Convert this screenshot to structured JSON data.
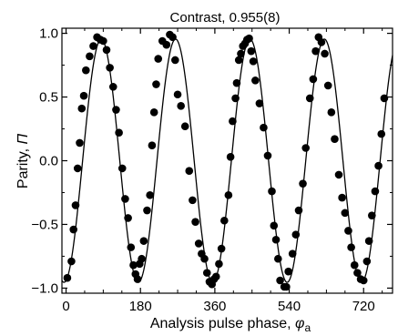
{
  "chart_data": {
    "type": "scatter",
    "title": "Contrast, 0.955(8)",
    "xlabel": "Analysis pulse phase, ",
    "xlabel_symbol": "φ",
    "xlabel_subscript": "a",
    "ylabel": "Parity, ",
    "ylabel_symbol": "Π",
    "xlim": [
      -10,
      790
    ],
    "ylim": [
      -1.04,
      1.04
    ],
    "xticks": [
      0,
      180,
      360,
      540,
      720
    ],
    "xtick_labels": [
      "0",
      "180",
      "360",
      "540",
      "720"
    ],
    "yticks": [
      -1.0,
      -0.5,
      0.0,
      0.5,
      1.0
    ],
    "ytick_labels": [
      "−1.0",
      "−0.5",
      "0.0",
      "0.5",
      "1.0"
    ],
    "grid": false,
    "fit": {
      "type": "cosine",
      "amplitude": 0.955,
      "period_deg": 180,
      "peak_phase_deg": 85
    },
    "series": [
      {
        "marker": "filled-circle",
        "color": "#000000",
        "points": [
          [
            3,
            -0.92
          ],
          [
            13,
            -0.79
          ],
          [
            18,
            -0.54
          ],
          [
            23,
            -0.35
          ],
          [
            28,
            -0.06
          ],
          [
            33,
            0.14
          ],
          [
            38,
            0.41
          ],
          [
            43,
            0.51
          ],
          [
            48,
            0.71
          ],
          [
            57,
            0.82
          ],
          [
            66,
            0.9
          ],
          [
            75,
            0.97
          ],
          [
            83,
            0.95
          ],
          [
            90,
            0.94
          ],
          [
            98,
            0.87
          ],
          [
            106,
            0.73
          ],
          [
            114,
            0.58
          ],
          [
            121,
            0.4
          ],
          [
            128,
            0.22
          ],
          [
            136,
            -0.06
          ],
          [
            143,
            -0.3
          ],
          [
            150,
            -0.45
          ],
          [
            157,
            -0.68
          ],
          [
            163,
            -0.82
          ],
          [
            168,
            -0.89
          ],
          [
            173,
            -0.93
          ],
          [
            178,
            -0.81
          ],
          [
            183,
            -0.77
          ],
          [
            188,
            -0.63
          ],
          [
            196,
            -0.39
          ],
          [
            203,
            -0.27
          ],
          [
            208,
            0.12
          ],
          [
            213,
            0.38
          ],
          [
            218,
            0.6
          ],
          [
            223,
            0.8
          ],
          [
            233,
            0.94
          ],
          [
            243,
            0.91
          ],
          [
            251,
            0.99
          ],
          [
            258,
            0.97
          ],
          [
            264,
            0.79
          ],
          [
            270,
            0.52
          ],
          [
            278,
            0.43
          ],
          [
            288,
            0.27
          ],
          [
            298,
            -0.08
          ],
          [
            306,
            -0.31
          ],
          [
            313,
            -0.48
          ],
          [
            321,
            -0.65
          ],
          [
            328,
            -0.73
          ],
          [
            335,
            -0.77
          ],
          [
            341,
            -0.88
          ],
          [
            347,
            -0.95
          ],
          [
            353,
            -0.97
          ],
          [
            358,
            -0.93
          ],
          [
            363,
            -0.91
          ],
          [
            370,
            -0.81
          ],
          [
            376,
            -0.69
          ],
          [
            383,
            -0.47
          ],
          [
            393,
            -0.27
          ],
          [
            398,
            0.03
          ],
          [
            403,
            0.31
          ],
          [
            410,
            0.49
          ],
          [
            413,
            0.61
          ],
          [
            418,
            0.79
          ],
          [
            423,
            0.84
          ],
          [
            428,
            0.9
          ],
          [
            433,
            0.92
          ],
          [
            438,
            0.95
          ],
          [
            443,
            0.96
          ],
          [
            448,
            0.86
          ],
          [
            453,
            0.78
          ],
          [
            458,
            0.63
          ],
          [
            468,
            0.45
          ],
          [
            478,
            0.26
          ],
          [
            488,
            0.04
          ],
          [
            498,
            -0.24
          ],
          [
            503,
            -0.51
          ],
          [
            508,
            -0.62
          ],
          [
            513,
            -0.77
          ],
          [
            518,
            -0.94
          ],
          [
            528,
            -0.99
          ],
          [
            533,
            -0.99
          ],
          [
            538,
            -0.87
          ],
          [
            548,
            -0.73
          ],
          [
            556,
            -0.58
          ],
          [
            563,
            -0.39
          ],
          [
            573,
            -0.18
          ],
          [
            580,
            0.1
          ],
          [
            590,
            0.49
          ],
          [
            598,
            0.64
          ],
          [
            604,
            0.86
          ],
          [
            611,
            0.97
          ],
          [
            618,
            0.93
          ],
          [
            626,
            0.84
          ],
          [
            634,
            0.59
          ],
          [
            642,
            0.38
          ],
          [
            650,
            0.17
          ],
          [
            660,
            -0.11
          ],
          [
            668,
            -0.29
          ],
          [
            675,
            -0.41
          ],
          [
            683,
            -0.55
          ],
          [
            690,
            -0.68
          ],
          [
            698,
            -0.82
          ],
          [
            705,
            -0.88
          ],
          [
            713,
            -0.93
          ],
          [
            720,
            -0.94
          ],
          [
            728,
            -0.79
          ],
          [
            733,
            -0.63
          ],
          [
            740,
            -0.43
          ],
          [
            748,
            -0.24
          ],
          [
            756,
            -0.04
          ],
          [
            763,
            0.21
          ],
          [
            770,
            0.49
          ]
        ]
      }
    ]
  }
}
